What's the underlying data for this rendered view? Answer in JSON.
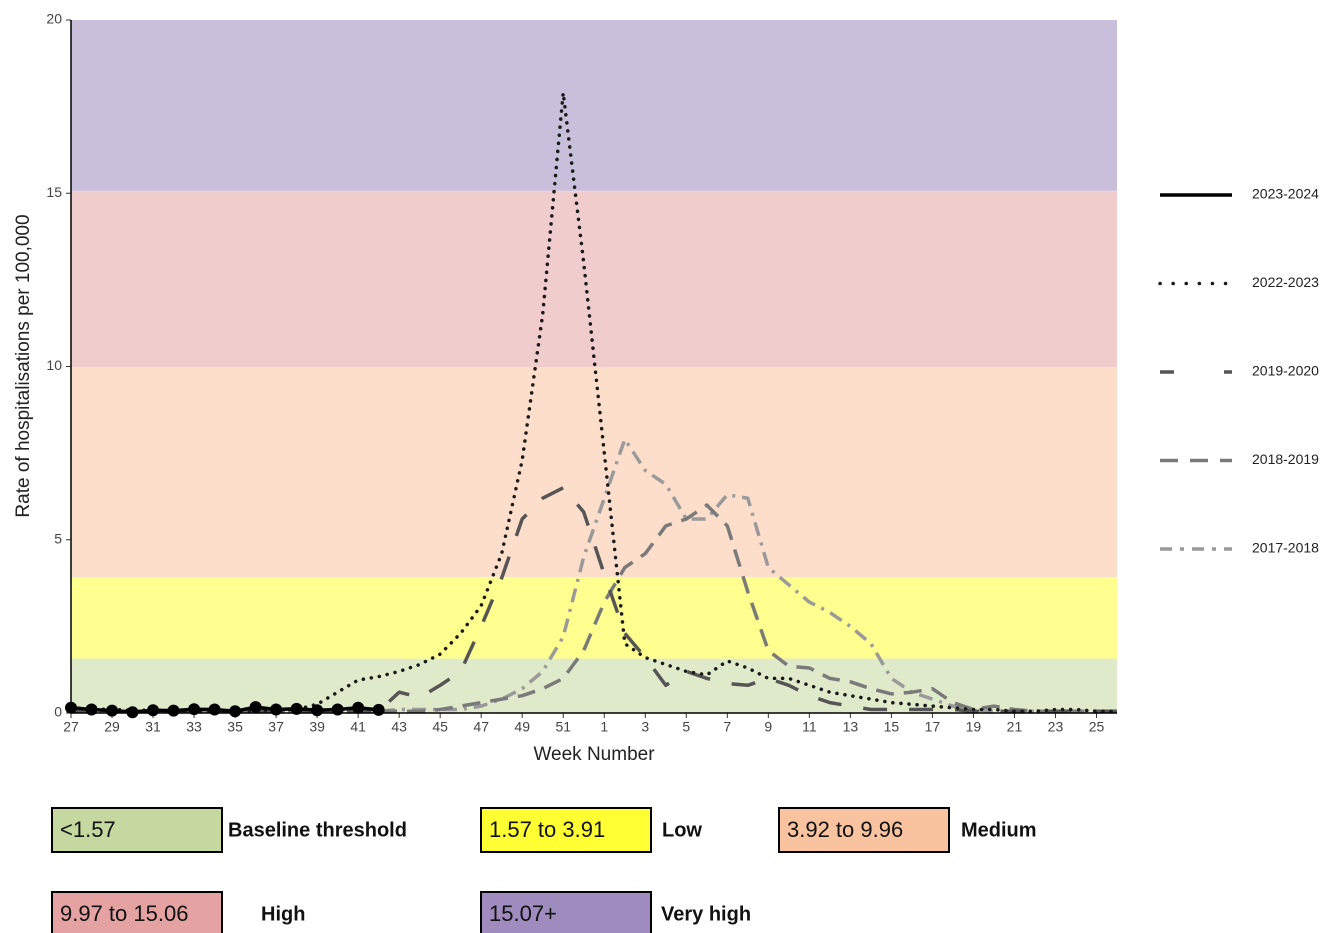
{
  "chart_data": {
    "type": "line",
    "x_label": "Week Number",
    "y_label": "Rate of hospitalisations per 100,000",
    "categories": [
      "27",
      null,
      "29",
      null,
      "31",
      null,
      "33",
      null,
      "35",
      null,
      "37",
      null,
      "39",
      null,
      "41",
      null,
      "43",
      null,
      "45",
      null,
      "47",
      null,
      "49",
      null,
      "51",
      null,
      "1",
      null,
      "3",
      null,
      "5",
      null,
      "7",
      null,
      "9",
      null,
      "11",
      null,
      "13",
      null,
      "15",
      null,
      "17",
      null,
      "19",
      null,
      "21",
      null,
      "23",
      null,
      "25",
      null
    ],
    "ylim": [
      0,
      20
    ],
    "yticks": [
      0,
      5,
      10,
      15,
      20
    ],
    "legend": "right",
    "series": [
      {
        "name": "2017-2018",
        "color": "#9a9a9a",
        "style": "dashdot",
        "values": [
          0.05,
          0.05,
          0.05,
          0.05,
          0.05,
          0.05,
          0.05,
          0.05,
          0.05,
          0.05,
          0.05,
          0.05,
          0.05,
          0.05,
          0.05,
          0.05,
          0.1,
          0.1,
          0.1,
          0.1,
          0.2,
          0.4,
          0.7,
          1.2,
          2.2,
          4.5,
          6.2,
          7.9,
          7.0,
          6.6,
          5.6,
          5.6,
          6.3,
          6.2,
          4.2,
          3.7,
          3.2,
          2.9,
          2.5,
          2.0,
          1.0,
          0.6,
          0.4,
          0.2,
          0.1,
          0.05,
          0.05,
          0.05,
          0.05,
          0.05,
          0.05,
          0.05
        ]
      },
      {
        "name": "2018-2019",
        "color": "#7a7a7a",
        "style": "dashed",
        "values": [
          0.05,
          0.05,
          0.05,
          0.05,
          0.05,
          0.05,
          0.05,
          0.05,
          0.05,
          0.05,
          0.05,
          0.05,
          0.05,
          0.05,
          0.05,
          0.05,
          0.05,
          0.05,
          0.1,
          0.2,
          0.3,
          0.4,
          0.5,
          0.7,
          1.0,
          1.8,
          3.2,
          4.2,
          4.6,
          5.4,
          5.6,
          6.0,
          5.4,
          3.5,
          1.8,
          1.35,
          1.3,
          1.0,
          0.9,
          0.7,
          0.55,
          0.6,
          0.7,
          0.3,
          0.1,
          0.2,
          0.1,
          0.05,
          0.05,
          0.05,
          0.05,
          0.05
        ]
      },
      {
        "name": "2019-2020",
        "color": "#555555",
        "style": "longdash",
        "values": [
          0.05,
          0.05,
          0.05,
          0.05,
          0.05,
          0.05,
          0.05,
          0.05,
          0.05,
          0.05,
          0.05,
          0.05,
          0.05,
          0.05,
          0.05,
          0.05,
          0.6,
          0.45,
          0.8,
          1.2,
          2.5,
          3.9,
          5.6,
          6.2,
          6.5,
          5.8,
          4.0,
          2.3,
          1.6,
          0.8,
          1.2,
          1.0,
          0.85,
          0.8,
          1.0,
          0.8,
          0.5,
          0.3,
          0.2,
          0.1,
          0.1,
          0.1,
          0.1,
          0.1,
          0.05,
          0.05,
          0.05,
          0.05,
          0.05,
          0.05,
          0.05,
          0.05
        ]
      },
      {
        "name": "2022-2023",
        "color": "#1a1a1a",
        "style": "dotted",
        "values": [
          0.15,
          0.12,
          0.1,
          0.08,
          0.08,
          0.08,
          0.06,
          0.06,
          0.06,
          0.06,
          0.08,
          0.1,
          0.25,
          0.6,
          0.95,
          1.05,
          1.2,
          1.4,
          1.7,
          2.3,
          3.1,
          4.6,
          7.3,
          11.5,
          17.9,
          13,
          7.5,
          2.0,
          1.6,
          1.4,
          1.2,
          1.1,
          1.5,
          1.3,
          1.0,
          1.0,
          0.8,
          0.6,
          0.5,
          0.4,
          0.3,
          0.25,
          0.2,
          0.15,
          0.1,
          0.1,
          0.05,
          0.05,
          0.1,
          0.1,
          0.05,
          0.05
        ]
      },
      {
        "name": "2023-2024",
        "color": "#000000",
        "style": "solid",
        "markers": true,
        "values": [
          0.15,
          0.1,
          0.07,
          0.02,
          0.08,
          0.07,
          0.11,
          0.1,
          0.05,
          0.17,
          0.1,
          0.12,
          0.08,
          0.1,
          0.15,
          0.09,
          null,
          null,
          null,
          null,
          null,
          null,
          null,
          null,
          null,
          null,
          null,
          null,
          null,
          null,
          null,
          null,
          null,
          null,
          null,
          null,
          null,
          null,
          null,
          null,
          null,
          null,
          null,
          null,
          null,
          null,
          null,
          null,
          null,
          null,
          null,
          null
        ]
      }
    ],
    "bands": [
      {
        "range_label": "<1.57",
        "level": "Baseline threshold",
        "from": 0,
        "to": 1.57,
        "color": "#c4d8a0"
      },
      {
        "range_label": "1.57 to 3.91",
        "level": "Low",
        "from": 1.57,
        "to": 3.91,
        "color": "#ffff33"
      },
      {
        "range_label": "3.92 to 9.96",
        "level": "Medium",
        "from": 3.92,
        "to": 9.96,
        "color": "#f9c3a0"
      },
      {
        "range_label": "9.97 to 15.06",
        "level": "High",
        "from": 9.97,
        "to": 15.06,
        "color": "#e4a3a2"
      },
      {
        "range_label": "15.07+",
        "level": "Very high",
        "from": 15.07,
        "to": 20,
        "color": "#9f8bbd"
      }
    ]
  }
}
